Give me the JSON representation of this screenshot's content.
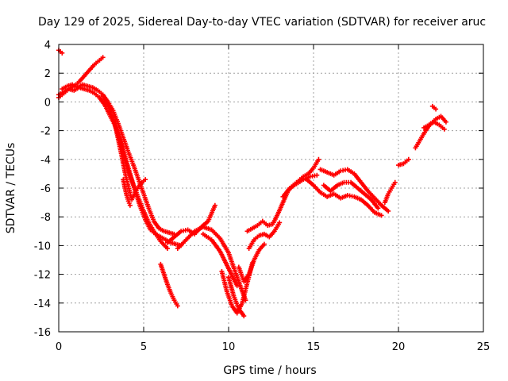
{
  "chart_data": {
    "type": "scatter",
    "title": "Day 129 of 2025, Sidereal Day-to-day VTEC variation (SDTVAR) for receiver aruc",
    "xlabel": "GPS time / hours",
    "ylabel": "SDTVAR / TECUs",
    "xlim": [
      0,
      25
    ],
    "ylim": [
      -16,
      4
    ],
    "xticks": [
      "0",
      "5",
      "10",
      "15",
      "20",
      "25"
    ],
    "yticks": [
      "4",
      "2",
      "0",
      "-2",
      "-4",
      "-6",
      "-8",
      "-10",
      "-12",
      "-14",
      "-16"
    ],
    "grid": true,
    "marker": "+",
    "color": "#ff0000",
    "series": [
      {
        "x": [
          0.0,
          0.1,
          0.2
        ],
        "y": [
          3.6,
          3.5,
          3.4
        ]
      },
      {
        "x": [
          0.0,
          0.3,
          0.6,
          0.9,
          1.2,
          1.5,
          1.8,
          2.1,
          2.4,
          2.6
        ],
        "y": [
          0.3,
          0.6,
          0.9,
          1.1,
          1.4,
          1.8,
          2.2,
          2.6,
          2.9,
          3.1
        ]
      },
      {
        "x": [
          0.0,
          0.3,
          0.6,
          0.9,
          1.2,
          1.5,
          1.8,
          2.1,
          2.4,
          2.7,
          3.0,
          3.3,
          3.6,
          3.9,
          4.2,
          4.5,
          4.8,
          5.1,
          5.4,
          5.7,
          6.0,
          6.3,
          6.6,
          6.9,
          7.2
        ],
        "y": [
          0.5,
          0.7,
          0.9,
          0.8,
          1.0,
          0.9,
          0.8,
          0.6,
          0.3,
          -0.2,
          -0.9,
          -1.6,
          -2.6,
          -3.8,
          -5.0,
          -6.2,
          -7.3,
          -8.2,
          -8.9,
          -9.2,
          -9.4,
          -9.6,
          -9.8,
          -9.9,
          -10.0
        ]
      },
      {
        "x": [
          0.2,
          0.5,
          0.8,
          1.1,
          1.4,
          1.7,
          2.0,
          2.3,
          2.6,
          2.9,
          3.2,
          3.5,
          3.8,
          4.1,
          4.4,
          4.7,
          5.0,
          5.3,
          5.6,
          5.9,
          6.2,
          6.5,
          6.8
        ],
        "y": [
          0.9,
          1.1,
          1.2,
          1.0,
          1.2,
          1.1,
          1.0,
          0.8,
          0.5,
          0.0,
          -0.6,
          -1.5,
          -2.5,
          -3.5,
          -4.4,
          -5.4,
          -6.4,
          -7.4,
          -8.3,
          -8.8,
          -9.0,
          -9.1,
          -9.2
        ]
      },
      {
        "x": [
          2.6,
          2.9,
          3.2,
          3.5,
          3.8,
          4.1,
          4.4,
          4.7,
          5.0,
          5.3,
          5.6,
          6.0,
          6.4
        ],
        "y": [
          0.4,
          -0.3,
          -1.2,
          -2.3,
          -3.6,
          -4.8,
          -5.8,
          -6.7,
          -7.6,
          -8.4,
          -9.0,
          -9.7,
          -10.2
        ]
      },
      {
        "x": [
          3.3,
          3.5,
          3.7,
          3.9,
          4.1,
          4.3,
          4.5,
          4.7,
          4.9,
          5.1
        ],
        "y": [
          -1.5,
          -2.6,
          -3.7,
          -4.9,
          -5.9,
          -6.8,
          -6.3,
          -5.9,
          -5.6,
          -5.4
        ]
      },
      {
        "x": [
          3.8,
          3.9,
          4.0,
          4.1,
          4.2
        ],
        "y": [
          -5.4,
          -6.0,
          -6.5,
          -6.9,
          -7.2
        ]
      },
      {
        "x": [
          6.0,
          6.2,
          6.4,
          6.6,
          6.8,
          7.0
        ],
        "y": [
          -11.3,
          -12.0,
          -12.7,
          -13.3,
          -13.8,
          -14.2
        ]
      },
      {
        "x": [
          6.4,
          6.8,
          7.2,
          7.6,
          8.0,
          8.4,
          8.8,
          9.2
        ],
        "y": [
          -9.8,
          -9.4,
          -9.0,
          -8.9,
          -9.2,
          -8.7,
          -8.3,
          -7.2
        ]
      },
      {
        "x": [
          7.0,
          7.5,
          8.0,
          8.5,
          9.0,
          9.5,
          10.0,
          10.5,
          11.0
        ],
        "y": [
          -10.2,
          -9.6,
          -9.0,
          -8.7,
          -8.9,
          -9.5,
          -10.5,
          -12.2,
          -13.8
        ]
      },
      {
        "x": [
          8.5,
          9.0,
          9.5,
          10.0,
          10.5
        ],
        "y": [
          -9.2,
          -9.6,
          -10.4,
          -11.6,
          -12.8
        ]
      },
      {
        "x": [
          9.6,
          9.9,
          10.2,
          10.5,
          10.8,
          11.1,
          11.4
        ],
        "y": [
          -11.8,
          -13.2,
          -14.2,
          -14.7,
          -14.0,
          -12.6,
          -11.2
        ]
      },
      {
        "x": [
          10.0,
          10.3,
          10.6,
          10.9
        ],
        "y": [
          -12.2,
          -13.5,
          -14.4,
          -14.9
        ]
      },
      {
        "x": [
          10.6,
          10.9,
          11.2,
          11.5,
          11.8,
          12.1
        ],
        "y": [
          -11.5,
          -12.5,
          -12.0,
          -11.0,
          -10.3,
          -9.9
        ]
      },
      {
        "x": [
          11.1,
          11.4,
          11.7,
          12.0,
          12.3,
          12.6,
          12.9,
          13.2,
          13.5,
          13.8,
          14.1,
          14.4,
          14.7,
          15.0,
          15.3
        ],
        "y": [
          -9.0,
          -8.8,
          -8.6,
          -8.3,
          -8.6,
          -8.5,
          -7.8,
          -7.0,
          -6.2,
          -5.8,
          -5.5,
          -5.2,
          -5.0,
          -4.6,
          -4.0
        ]
      },
      {
        "x": [
          11.2,
          11.5,
          11.8,
          12.1,
          12.4,
          12.7,
          13.0
        ],
        "y": [
          -10.2,
          -9.6,
          -9.3,
          -9.2,
          -9.4,
          -9.0,
          -8.4
        ]
      },
      {
        "x": [
          13.2,
          13.6,
          14.0,
          14.4,
          14.8,
          15.2
        ],
        "y": [
          -6.6,
          -6.0,
          -5.7,
          -5.4,
          -5.2,
          -5.1
        ]
      },
      {
        "x": [
          14.6,
          15.0,
          15.4,
          15.8,
          16.2,
          16.6,
          17.0,
          17.4,
          17.8,
          18.2,
          18.6,
          19.0
        ],
        "y": [
          -5.4,
          -5.8,
          -6.3,
          -6.6,
          -6.4,
          -6.7,
          -6.5,
          -6.6,
          -6.8,
          -7.2,
          -7.7,
          -7.9
        ]
      },
      {
        "x": [
          15.4,
          15.8,
          16.2,
          16.6,
          17.0,
          17.4,
          17.8,
          18.2,
          18.6,
          19.0,
          19.4
        ],
        "y": [
          -4.7,
          -4.9,
          -5.1,
          -4.8,
          -4.7,
          -5.0,
          -5.6,
          -6.2,
          -6.7,
          -7.2,
          -7.6
        ]
      },
      {
        "x": [
          15.6,
          16.0,
          16.4,
          16.8,
          17.2,
          17.6,
          18.0,
          18.4,
          18.8
        ],
        "y": [
          -5.8,
          -6.2,
          -5.8,
          -5.6,
          -5.6,
          -6.0,
          -6.4,
          -6.8,
          -7.4
        ]
      },
      {
        "x": [
          19.2,
          19.4,
          19.6,
          19.8
        ],
        "y": [
          -7.0,
          -6.4,
          -6.0,
          -5.6
        ]
      },
      {
        "x": [
          20.0,
          20.3,
          20.6
        ],
        "y": [
          -4.4,
          -4.3,
          -4.0
        ]
      },
      {
        "x": [
          21.0,
          21.3,
          21.6,
          21.9,
          22.2,
          22.5,
          22.8
        ],
        "y": [
          -3.2,
          -2.6,
          -2.0,
          -1.5,
          -1.2,
          -1.0,
          -1.4
        ]
      },
      {
        "x": [
          21.5,
          21.8,
          22.1,
          22.4,
          22.7
        ],
        "y": [
          -1.8,
          -1.6,
          -1.4,
          -1.6,
          -1.9
        ]
      },
      {
        "x": [
          22.0,
          22.2
        ],
        "y": [
          -0.3,
          -0.5
        ]
      }
    ]
  }
}
